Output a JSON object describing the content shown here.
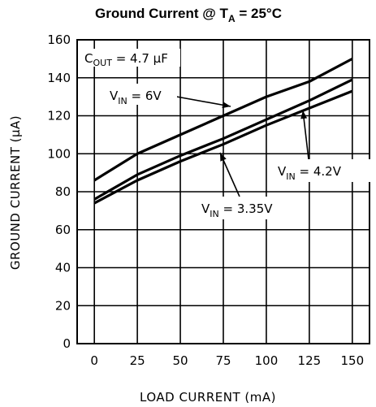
{
  "chart_data": {
    "type": "line",
    "title": {
      "prefix": "Ground Current @ T",
      "sub": "A",
      "suffix": " = 25°C"
    },
    "xlabel": "LOAD CURRENT (mA)",
    "ylabel": "GROUND CURRENT (μA)",
    "xlim": [
      -10,
      160
    ],
    "ylim": [
      0,
      160
    ],
    "x_ticks": [
      0,
      25,
      50,
      75,
      100,
      125,
      150
    ],
    "y_ticks": [
      0,
      20,
      40,
      60,
      80,
      100,
      120,
      140,
      160
    ],
    "grid": true,
    "annotation": {
      "prefix": "C",
      "sub": "OUT",
      "suffix": " = 4.7 μF"
    },
    "series": [
      {
        "name": {
          "prefix": "V",
          "sub": "IN",
          "suffix": " = 6V"
        },
        "x": [
          0,
          25,
          50,
          75,
          100,
          125,
          150
        ],
        "values": [
          86,
          100,
          110,
          120,
          130,
          138,
          150
        ]
      },
      {
        "name": {
          "prefix": "V",
          "sub": "IN",
          "suffix": " = 4.2V"
        },
        "x": [
          0,
          25,
          50,
          75,
          100,
          125,
          150
        ],
        "values": [
          76,
          89,
          99,
          108,
          118,
          128,
          139
        ]
      },
      {
        "name": {
          "prefix": "V",
          "sub": "IN",
          "suffix": " = 3.35V"
        },
        "x": [
          0,
          25,
          50,
          75,
          100,
          125,
          150
        ],
        "values": [
          74,
          86,
          96,
          105,
          115,
          124,
          133
        ]
      }
    ]
  }
}
